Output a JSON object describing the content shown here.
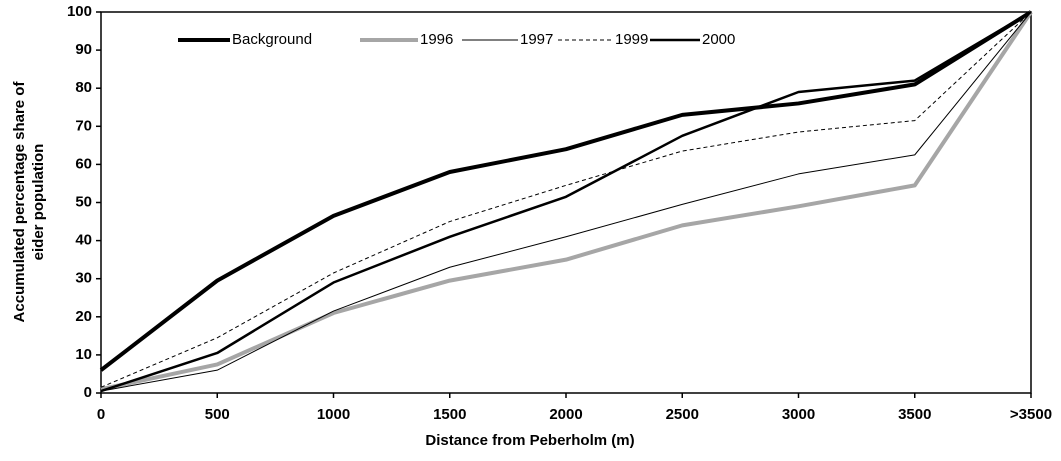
{
  "chart_data": {
    "type": "line",
    "x_label": "Distance from Peberholm  (m)",
    "y_label": [
      "Accumulated percentage share of",
      "eider population"
    ],
    "categories": [
      "0",
      "500",
      "1000",
      "1500",
      "2000",
      "2500",
      "3000",
      "3500",
      ">3500"
    ],
    "ylim": [
      0,
      100
    ],
    "yticks": [
      0,
      10,
      20,
      30,
      40,
      50,
      60,
      70,
      80,
      90,
      100
    ],
    "legend": "top",
    "series": [
      {
        "name": "Background",
        "color": "#000000",
        "width": 4,
        "dash": "none",
        "values": [
          6,
          29.5,
          46.5,
          58,
          64,
          73,
          76,
          81,
          100
        ]
      },
      {
        "name": "1996",
        "color": "#a6a6a6",
        "width": 4,
        "dash": "none",
        "values": [
          1,
          7.5,
          21,
          29.5,
          35,
          44,
          49,
          54.5,
          100
        ]
      },
      {
        "name": "1997",
        "color": "#000000",
        "width": 1,
        "dash": "none",
        "values": [
          0.5,
          6,
          21.5,
          33,
          41,
          49.5,
          57.5,
          62.5,
          100
        ]
      },
      {
        "name": "1999",
        "color": "#000000",
        "width": 1,
        "dash": "4 3",
        "values": [
          1.5,
          14.5,
          31.5,
          45,
          54.5,
          63.5,
          68.5,
          71.5,
          100
        ]
      },
      {
        "name": "2000",
        "color": "#000000",
        "width": 2.5,
        "dash": "none",
        "values": [
          0.5,
          10.5,
          29,
          41,
          51.5,
          67.5,
          79,
          82,
          100
        ]
      }
    ]
  }
}
